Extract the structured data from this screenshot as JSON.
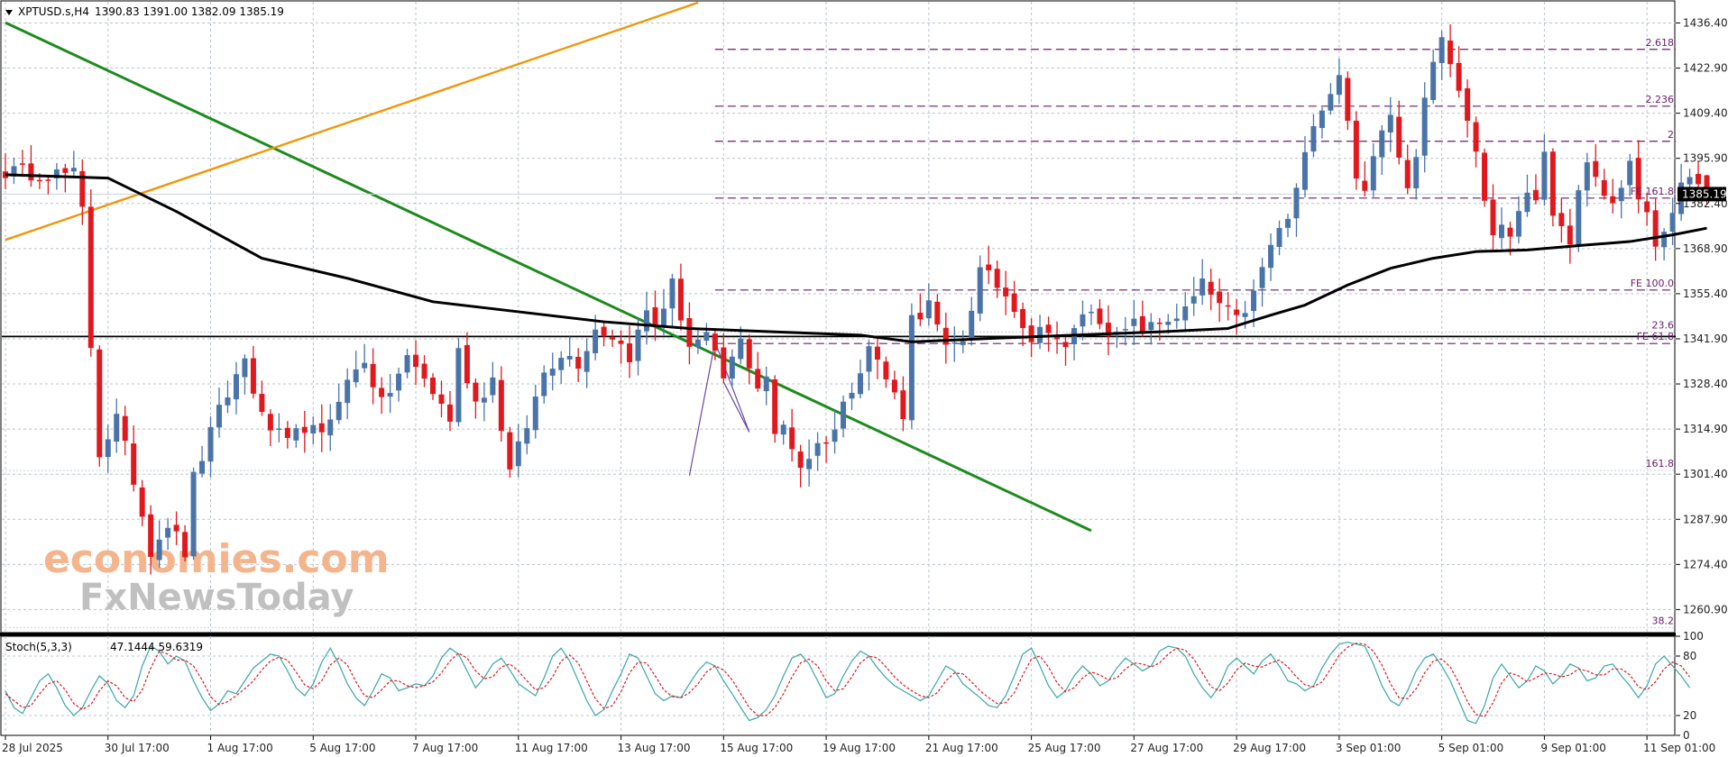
{
  "header": {
    "symbol_text": "XPTUSD.s,H4",
    "ohlc_text": "1390.83 1391.00 1382.09 1385.19"
  },
  "watermark": {
    "line1": "economies.com",
    "line2": "FxNewsToday"
  },
  "colors": {
    "up": "#4a74a8",
    "down": "#e0191e",
    "ma": "#000000",
    "fib": "#6a1b6a",
    "support": "#000000",
    "downtrend": "#1e8a1e",
    "uptrend": "#f0960a",
    "grid": "#b8c4cc",
    "stoch_main": "#3aa6a6",
    "stoch_signal": "#e0191e",
    "watermark_orange": "#f4b48c",
    "watermark_gray": "#c0c0c0"
  },
  "chart_data": [
    {
      "type": "candlestick",
      "title": "XPTUSD.s,H4",
      "timeframe": "H4",
      "last_price": 1385.19,
      "last_price_label": "1385.19",
      "ohlc_last": {
        "open": 1390.83,
        "high": 1391.0,
        "low": 1382.09,
        "close": 1385.19
      },
      "ylim": [
        1254.0,
        1443.0
      ],
      "y_ticks": [
        "1436.40",
        "1422.90",
        "1409.40",
        "1395.90",
        "1382.40",
        "1368.90",
        "1355.40",
        "1341.90",
        "1328.40",
        "1314.90",
        "1301.40",
        "1287.90",
        "1274.40",
        "1260.90"
      ],
      "x_ticks": [
        "28 Jul 2025",
        "30 Jul 17:00",
        "1 Aug 17:00",
        "5 Aug 17:00",
        "7 Aug 17:00",
        "11 Aug 17:00",
        "13 Aug 17:00",
        "15 Aug 17:00",
        "19 Aug 17:00",
        "21 Aug 17:00",
        "25 Aug 17:00",
        "27 Aug 17:00",
        "29 Aug 17:00",
        "3 Sep 01:00",
        "5 Sep 01:00",
        "9 Sep 01:00",
        "11 Sep 01:00"
      ],
      "waypoints": [
        [
          0,
          1392
        ],
        [
          8,
          1391
        ],
        [
          9,
          1380
        ],
        [
          10,
          1340
        ],
        [
          11,
          1308
        ],
        [
          13,
          1318
        ],
        [
          15,
          1300
        ],
        [
          17,
          1279
        ],
        [
          19,
          1287
        ],
        [
          21,
          1278
        ],
        [
          22,
          1300
        ],
        [
          25,
          1320
        ],
        [
          28,
          1336
        ],
        [
          30,
          1318
        ],
        [
          33,
          1310
        ],
        [
          35,
          1316
        ],
        [
          37,
          1312
        ],
        [
          39,
          1325
        ],
        [
          42,
          1336
        ],
        [
          44,
          1322
        ],
        [
          47,
          1336
        ],
        [
          49,
          1330
        ],
        [
          52,
          1318
        ],
        [
          53,
          1338
        ],
        [
          55,
          1323
        ],
        [
          57,
          1330
        ],
        [
          59,
          1302
        ],
        [
          61,
          1316
        ],
        [
          63,
          1332
        ],
        [
          65,
          1338
        ],
        [
          67,
          1335
        ],
        [
          69,
          1345
        ],
        [
          71,
          1343
        ],
        [
          73,
          1337
        ],
        [
          75,
          1350
        ],
        [
          76,
          1346
        ],
        [
          78,
          1358
        ],
        [
          80,
          1340
        ],
        [
          82,
          1342
        ],
        [
          84,
          1330
        ],
        [
          86,
          1341
        ],
        [
          88,
          1328
        ],
        [
          89,
          1331
        ],
        [
          90,
          1312
        ],
        [
          91,
          1316
        ],
        [
          93,
          1304
        ],
        [
          95,
          1310
        ],
        [
          97,
          1315
        ],
        [
          98,
          1322
        ],
        [
          101,
          1340
        ],
        [
          103,
          1330
        ],
        [
          105,
          1320
        ],
        [
          106,
          1348
        ],
        [
          108,
          1352
        ],
        [
          110,
          1338
        ],
        [
          112,
          1342
        ],
        [
          114,
          1362
        ],
        [
          116,
          1358
        ],
        [
          118,
          1352
        ],
        [
          120,
          1342
        ],
        [
          122,
          1346
        ],
        [
          124,
          1338
        ],
        [
          126,
          1350
        ],
        [
          128,
          1348
        ],
        [
          130,
          1342
        ],
        [
          132,
          1346
        ],
        [
          134,
          1345
        ],
        [
          136,
          1348
        ],
        [
          138,
          1350
        ],
        [
          140,
          1358
        ],
        [
          142,
          1352
        ],
        [
          144,
          1347
        ],
        [
          146,
          1355
        ],
        [
          148,
          1370
        ],
        [
          150,
          1378
        ],
        [
          151,
          1386
        ],
        [
          152,
          1396
        ],
        [
          153,
          1408
        ],
        [
          155,
          1416
        ],
        [
          156,
          1422
        ],
        [
          157,
          1406
        ],
        [
          158,
          1392
        ],
        [
          159,
          1384
        ],
        [
          160,
          1396
        ],
        [
          161,
          1404
        ],
        [
          162,
          1411
        ],
        [
          163,
          1398
        ],
        [
          164,
          1388
        ],
        [
          165,
          1398
        ],
        [
          166,
          1416
        ],
        [
          167,
          1426
        ],
        [
          168,
          1431
        ],
        [
          169,
          1425
        ],
        [
          170,
          1416
        ],
        [
          171,
          1408
        ],
        [
          172,
          1396
        ],
        [
          173,
          1384
        ],
        [
          174,
          1374
        ],
        [
          175,
          1378
        ],
        [
          176,
          1370
        ],
        [
          177,
          1378
        ],
        [
          178,
          1388
        ],
        [
          179,
          1382
        ],
        [
          180,
          1396
        ],
        [
          181,
          1378
        ],
        [
          182,
          1376
        ],
        [
          183,
          1370
        ],
        [
          184,
          1386
        ],
        [
          185,
          1396
        ],
        [
          186,
          1390
        ],
        [
          187,
          1384
        ],
        [
          188,
          1381
        ],
        [
          189,
          1388
        ],
        [
          190,
          1394
        ],
        [
          191,
          1386
        ],
        [
          192,
          1378
        ],
        [
          193,
          1368
        ],
        [
          194,
          1372
        ],
        [
          195,
          1380
        ],
        [
          196,
          1388
        ],
        [
          197,
          1392
        ],
        [
          198,
          1388
        ],
        [
          199,
          1385.19
        ]
      ],
      "moving_average": [
        [
          0,
          1391
        ],
        [
          12,
          1390
        ],
        [
          20,
          1380
        ],
        [
          30,
          1366
        ],
        [
          40,
          1360
        ],
        [
          50,
          1353
        ],
        [
          60,
          1350
        ],
        [
          70,
          1347
        ],
        [
          80,
          1345
        ],
        [
          90,
          1344
        ],
        [
          100,
          1343
        ],
        [
          106,
          1341
        ],
        [
          115,
          1342
        ],
        [
          125,
          1343
        ],
        [
          135,
          1344
        ],
        [
          143,
          1345
        ],
        [
          148,
          1349
        ],
        [
          152,
          1352
        ],
        [
          157,
          1358
        ],
        [
          162,
          1363
        ],
        [
          167,
          1366
        ],
        [
          172,
          1368
        ],
        [
          178,
          1368.5
        ],
        [
          185,
          1370
        ],
        [
          190,
          1371
        ],
        [
          195,
          1373
        ],
        [
          199,
          1375
        ]
      ],
      "support_level": 1342.6,
      "fibonacci_levels": [
        {
          "label": "2.618",
          "price": 1428.5
        },
        {
          "label": "2.236",
          "price": 1411.5
        },
        {
          "label": "2",
          "price": 1401.0
        },
        {
          "label": "FE 161.8",
          "price": 1384.0
        },
        {
          "label": "FE 100.0",
          "price": 1356.5
        },
        {
          "label": "FE 61.8",
          "price": 1340.5
        },
        {
          "label": "23.6",
          "price": 1343.9
        },
        {
          "label": "161.8",
          "price": 1302.5
        },
        {
          "label": "38.2",
          "price": 1255.5
        }
      ],
      "downtrend_line": [
        [
          0,
          1436.5
        ],
        [
          127,
          1284.5
        ]
      ],
      "uptrend_line": [
        [
          0,
          1371.5
        ],
        [
          81,
          1442.5
        ]
      ],
      "harmonic_pattern": [
        [
          80,
          1301
        ],
        [
          83,
          1341
        ],
        [
          87,
          1314
        ],
        [
          84,
          1329
        ]
      ]
    },
    {
      "type": "line",
      "title": "Stoch(5,3,3)",
      "indicator_values": "47.1444 59.6319",
      "ylim": [
        0,
        100
      ],
      "y_ticks": [
        "100",
        "80",
        "20",
        "0"
      ],
      "series": [
        {
          "name": "main",
          "values": [
            45,
            28,
            22,
            38,
            55,
            62,
            48,
            30,
            20,
            28,
            45,
            60,
            52,
            35,
            28,
            40,
            70,
            90,
            85,
            72,
            80,
            75,
            55,
            38,
            25,
            32,
            45,
            42,
            55,
            68,
            75,
            82,
            80,
            65,
            48,
            40,
            52,
            74,
            88,
            72,
            52,
            38,
            30,
            45,
            62,
            58,
            45,
            48,
            52,
            50,
            60,
            78,
            88,
            82,
            65,
            48,
            58,
            72,
            78,
            66,
            52,
            46,
            40,
            58,
            80,
            88,
            75,
            55,
            35,
            20,
            26,
            45,
            62,
            82,
            78,
            60,
            42,
            35,
            40,
            38,
            52,
            65,
            74,
            70,
            55,
            42,
            28,
            15,
            18,
            26,
            40,
            60,
            78,
            82,
            72,
            55,
            38,
            42,
            60,
            75,
            85,
            80,
            68,
            58,
            50,
            45,
            40,
            35,
            40,
            55,
            70,
            65,
            52,
            45,
            38,
            30,
            28,
            40,
            60,
            82,
            88,
            70,
            50,
            38,
            45,
            60,
            70,
            62,
            50,
            55,
            68,
            78,
            72,
            65,
            70,
            85,
            90,
            88,
            80,
            62,
            48,
            38,
            50,
            70,
            78,
            70,
            62,
            75,
            82,
            70,
            55,
            52,
            45,
            50,
            68,
            82,
            92,
            94,
            92,
            90,
            72,
            50,
            35,
            30,
            45,
            65,
            78,
            82,
            70,
            55,
            35,
            15,
            12,
            30,
            58,
            72,
            60,
            48,
            55,
            70,
            65,
            52,
            60,
            72,
            68,
            55,
            58,
            70,
            72,
            60,
            50,
            38,
            50,
            72,
            80,
            70,
            60,
            48
          ]
        },
        {
          "name": "signal",
          "values": [
            42,
            35,
            28,
            30,
            42,
            52,
            55,
            46,
            32,
            26,
            31,
            45,
            55,
            50,
            38,
            34,
            46,
            68,
            85,
            82,
            76,
            76,
            70,
            56,
            39,
            31,
            34,
            40,
            47,
            55,
            66,
            75,
            79,
            76,
            64,
            51,
            47,
            55,
            71,
            78,
            71,
            54,
            40,
            38,
            46,
            55,
            55,
            50,
            48,
            50,
            54,
            63,
            75,
            83,
            78,
            65,
            57,
            59,
            69,
            72,
            65,
            55,
            46,
            48,
            59,
            75,
            81,
            73,
            55,
            37,
            27,
            30,
            44,
            63,
            74,
            73,
            60,
            46,
            39,
            38,
            43,
            52,
            64,
            70,
            66,
            56,
            42,
            28,
            20,
            20,
            28,
            42,
            59,
            73,
            77,
            70,
            55,
            45,
            47,
            59,
            73,
            80,
            78,
            69,
            59,
            51,
            45,
            40,
            38,
            43,
            55,
            63,
            62,
            54,
            45,
            38,
            32,
            33,
            43,
            61,
            77,
            80,
            69,
            53,
            44,
            48,
            58,
            64,
            61,
            56,
            58,
            67,
            73,
            72,
            69,
            73,
            82,
            88,
            86,
            77,
            63,
            49,
            45,
            53,
            66,
            73,
            70,
            69,
            73,
            76,
            69,
            59,
            51,
            49,
            54,
            67,
            81,
            89,
            93,
            92,
            85,
            71,
            52,
            38,
            37,
            47,
            63,
            75,
            77,
            69,
            53,
            34,
            21,
            19,
            33,
            53,
            63,
            60,
            54,
            58,
            63,
            62,
            59,
            61,
            67,
            65,
            61,
            61,
            67,
            67,
            61,
            49,
            46,
            54,
            67,
            74,
            70,
            59
          ]
        }
      ]
    }
  ]
}
